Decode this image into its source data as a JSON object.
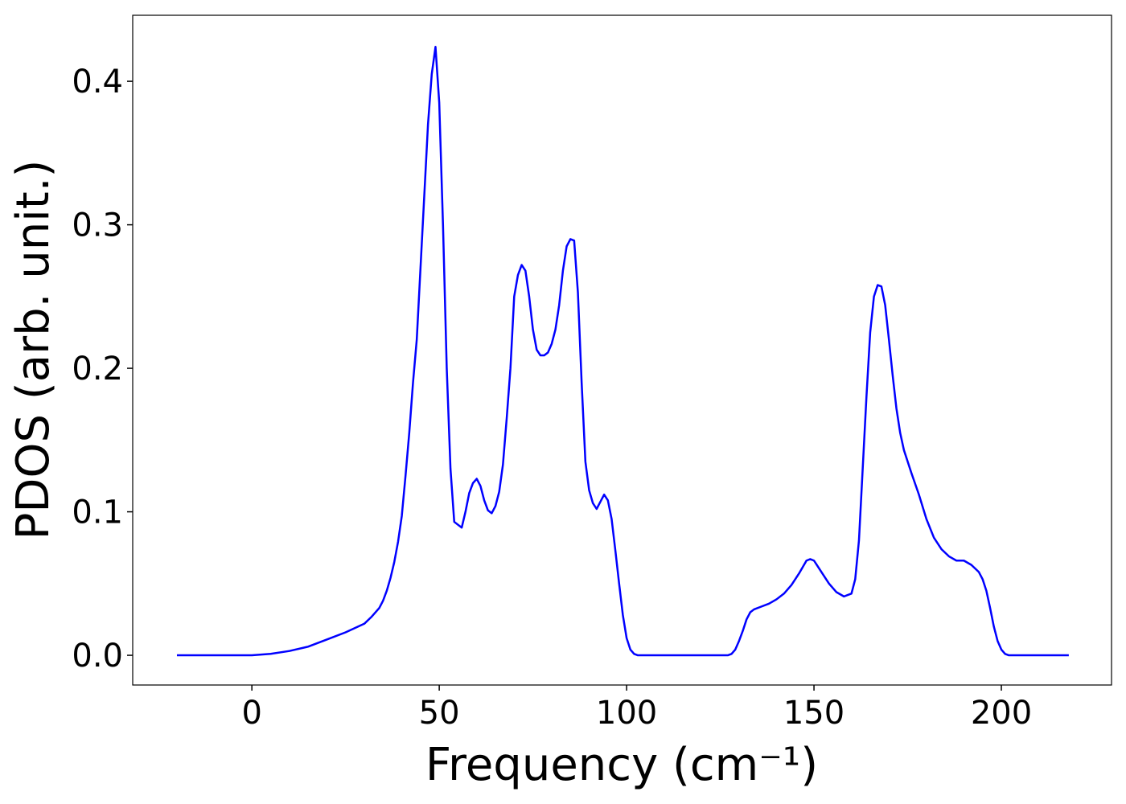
{
  "chart_data": {
    "type": "line",
    "xlabel": "Frequency (cm⁻¹)",
    "ylabel": "PDOS (arb. unit.)",
    "color": "#0000ff",
    "x": [
      -20,
      -16,
      -12,
      -8,
      -4,
      0,
      5,
      10,
      15,
      20,
      25,
      30,
      32,
      34,
      35,
      36,
      37,
      38,
      39,
      40,
      41,
      42,
      43,
      44,
      45,
      46,
      47,
      48,
      49,
      50,
      51,
      52,
      53,
      54,
      56,
      57,
      58,
      59,
      60,
      61,
      62,
      63,
      64,
      65,
      66,
      67,
      68,
      69,
      70,
      71,
      72,
      73,
      74,
      75,
      76,
      77,
      78,
      79,
      80,
      81,
      82,
      83,
      84,
      85,
      86,
      87,
      88,
      89,
      90,
      91,
      92,
      93,
      94,
      95,
      96,
      97,
      98,
      99,
      100,
      101,
      102,
      103,
      104,
      106,
      110,
      115,
      120,
      125,
      127,
      128,
      129,
      130,
      131,
      132,
      133,
      134,
      136,
      138,
      140,
      142,
      144,
      146,
      148,
      149,
      150,
      152,
      154,
      156,
      158,
      159,
      160,
      161,
      162,
      163,
      164,
      165,
      166,
      167,
      168,
      169,
      170,
      171,
      172,
      173,
      174,
      176,
      178,
      180,
      182,
      184,
      186,
      188,
      190,
      192,
      194,
      195,
      196,
      197,
      198,
      199,
      200,
      201,
      202,
      206,
      210,
      214,
      218
    ],
    "values": [
      0,
      0,
      0,
      0,
      0,
      0,
      0.001,
      0.003,
      0.006,
      0.011,
      0.016,
      0.022,
      0.027,
      0.033,
      0.038,
      0.045,
      0.054,
      0.065,
      0.079,
      0.097,
      0.125,
      0.155,
      0.19,
      0.22,
      0.27,
      0.32,
      0.37,
      0.405,
      0.424,
      0.385,
      0.3,
      0.2,
      0.13,
      0.093,
      0.089,
      0.1,
      0.113,
      0.12,
      0.123,
      0.118,
      0.108,
      0.101,
      0.099,
      0.104,
      0.114,
      0.133,
      0.165,
      0.2,
      0.25,
      0.265,
      0.272,
      0.268,
      0.25,
      0.227,
      0.213,
      0.209,
      0.209,
      0.211,
      0.217,
      0.227,
      0.244,
      0.268,
      0.285,
      0.29,
      0.289,
      0.253,
      0.19,
      0.135,
      0.115,
      0.106,
      0.102,
      0.107,
      0.112,
      0.108,
      0.095,
      0.073,
      0.05,
      0.028,
      0.012,
      0.004,
      0.001,
      0,
      0,
      0,
      0,
      0,
      0,
      0,
      0,
      0.001,
      0.004,
      0.01,
      0.017,
      0.025,
      0.03,
      0.032,
      0.034,
      0.036,
      0.039,
      0.043,
      0.049,
      0.057,
      0.066,
      0.067,
      0.066,
      0.058,
      0.05,
      0.044,
      0.041,
      0.042,
      0.043,
      0.053,
      0.08,
      0.13,
      0.18,
      0.225,
      0.25,
      0.258,
      0.257,
      0.244,
      0.22,
      0.195,
      0.172,
      0.155,
      0.143,
      0.127,
      0.112,
      0.095,
      0.082,
      0.074,
      0.069,
      0.066,
      0.066,
      0.063,
      0.058,
      0.053,
      0.045,
      0.033,
      0.02,
      0.01,
      0.004,
      0.001,
      0,
      0,
      0,
      0,
      0
    ],
    "xlim": [
      -31.8,
      229.4
    ],
    "ylim": [
      -0.0207,
      0.446
    ],
    "xticks": [
      0,
      50,
      100,
      150,
      200
    ],
    "yticks": [
      {
        "value": 0,
        "label": "0.0"
      },
      0.1,
      0.2,
      0.3,
      0.4
    ]
  }
}
